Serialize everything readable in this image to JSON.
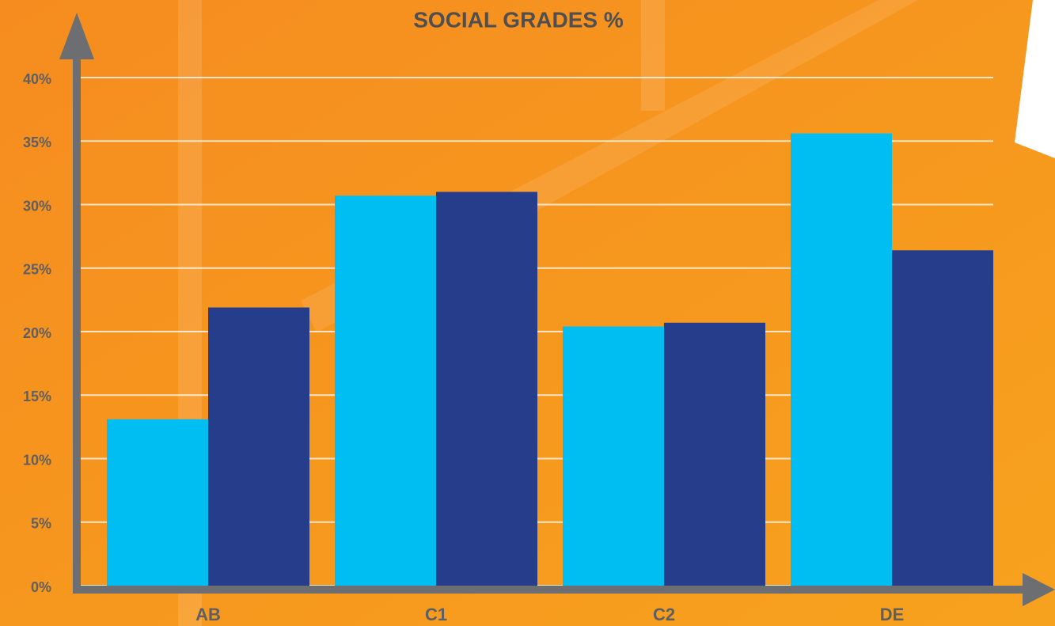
{
  "chart_data": {
    "type": "bar",
    "title": "SOCIAL GRADES %",
    "categories": [
      "AB",
      "C1",
      "C2",
      "DE"
    ],
    "series": [
      {
        "color": "#00bdf2",
        "values": [
          13.1,
          30.7,
          20.4,
          35.6
        ]
      },
      {
        "color": "#253d8b",
        "values": [
          21.9,
          31.0,
          20.7,
          26.4
        ]
      }
    ],
    "ylim": [
      0,
      40
    ],
    "yticks": [
      {
        "value": 0,
        "label": "0%"
      },
      {
        "value": 5,
        "label": "5%"
      },
      {
        "value": 10,
        "label": "10%"
      },
      {
        "value": 15,
        "label": "15%"
      },
      {
        "value": 20,
        "label": "20%"
      },
      {
        "value": 25,
        "label": "25%"
      },
      {
        "value": 30,
        "label": "30%"
      },
      {
        "value": 35,
        "label": "35%"
      },
      {
        "value": 40,
        "label": "40%"
      }
    ],
    "grid": true
  }
}
